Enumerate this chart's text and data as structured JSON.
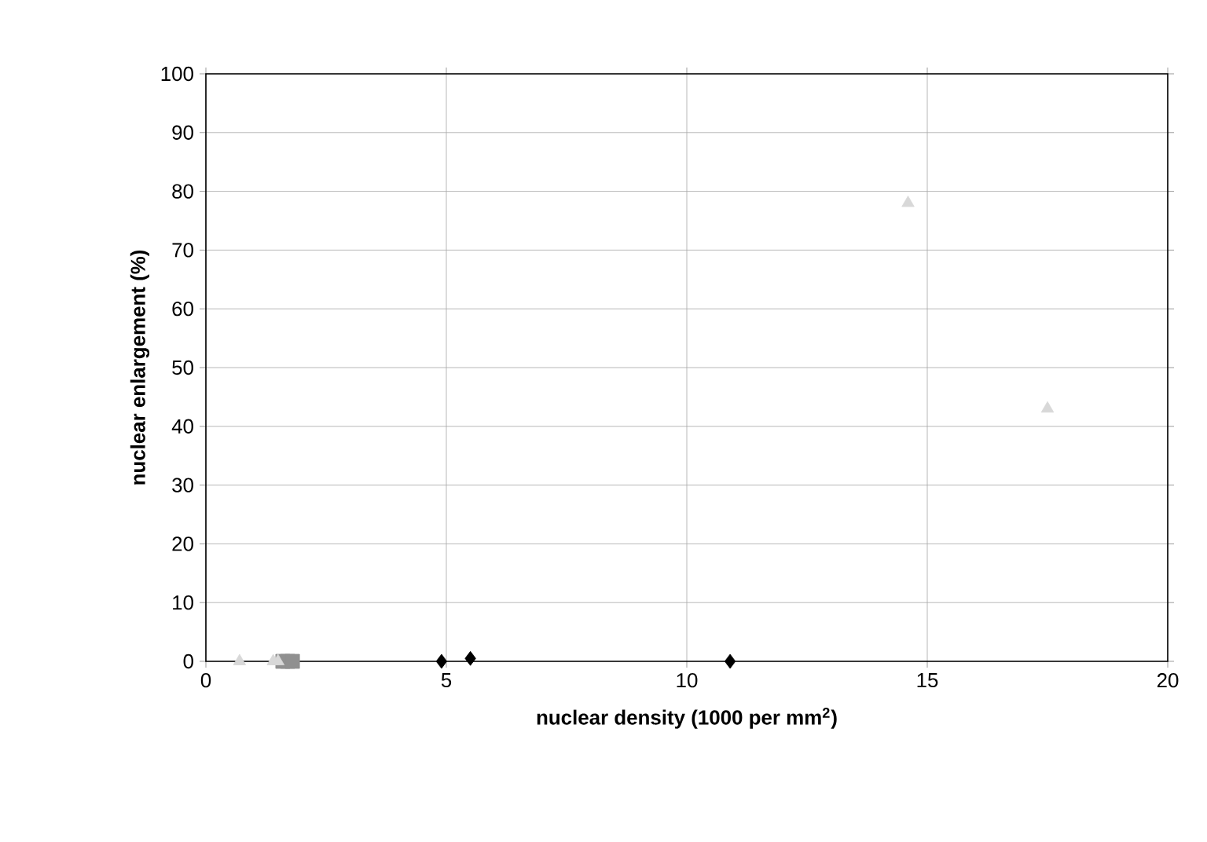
{
  "chart_data": {
    "type": "scatter",
    "xlabel": "nuclear density (1000 per mm$^{2}$)",
    "ylabel": "nuclear enlargement (%)",
    "xlim": [
      0,
      20
    ],
    "ylim": [
      0,
      100
    ],
    "xticks": [
      0,
      5,
      10,
      15,
      20
    ],
    "yticks": [
      0,
      10,
      20,
      30,
      40,
      50,
      60,
      70,
      80,
      90,
      100
    ],
    "grid": true,
    "series": [
      {
        "color": "#000000",
        "marker": "diamond",
        "x": [
          4.9,
          5.5,
          10.9
        ],
        "values": [
          0,
          0.5,
          0
        ]
      },
      {
        "color": "#909090",
        "marker": "square",
        "x": [
          1.6,
          1.7,
          1.8
        ],
        "values": [
          0,
          0,
          0
        ]
      },
      {
        "color": "#d8d8d8",
        "marker": "triangle",
        "x": [
          0.7,
          1.4,
          1.5,
          14.6,
          17.5
        ],
        "values": [
          0,
          0,
          0,
          78,
          43
        ]
      }
    ]
  }
}
